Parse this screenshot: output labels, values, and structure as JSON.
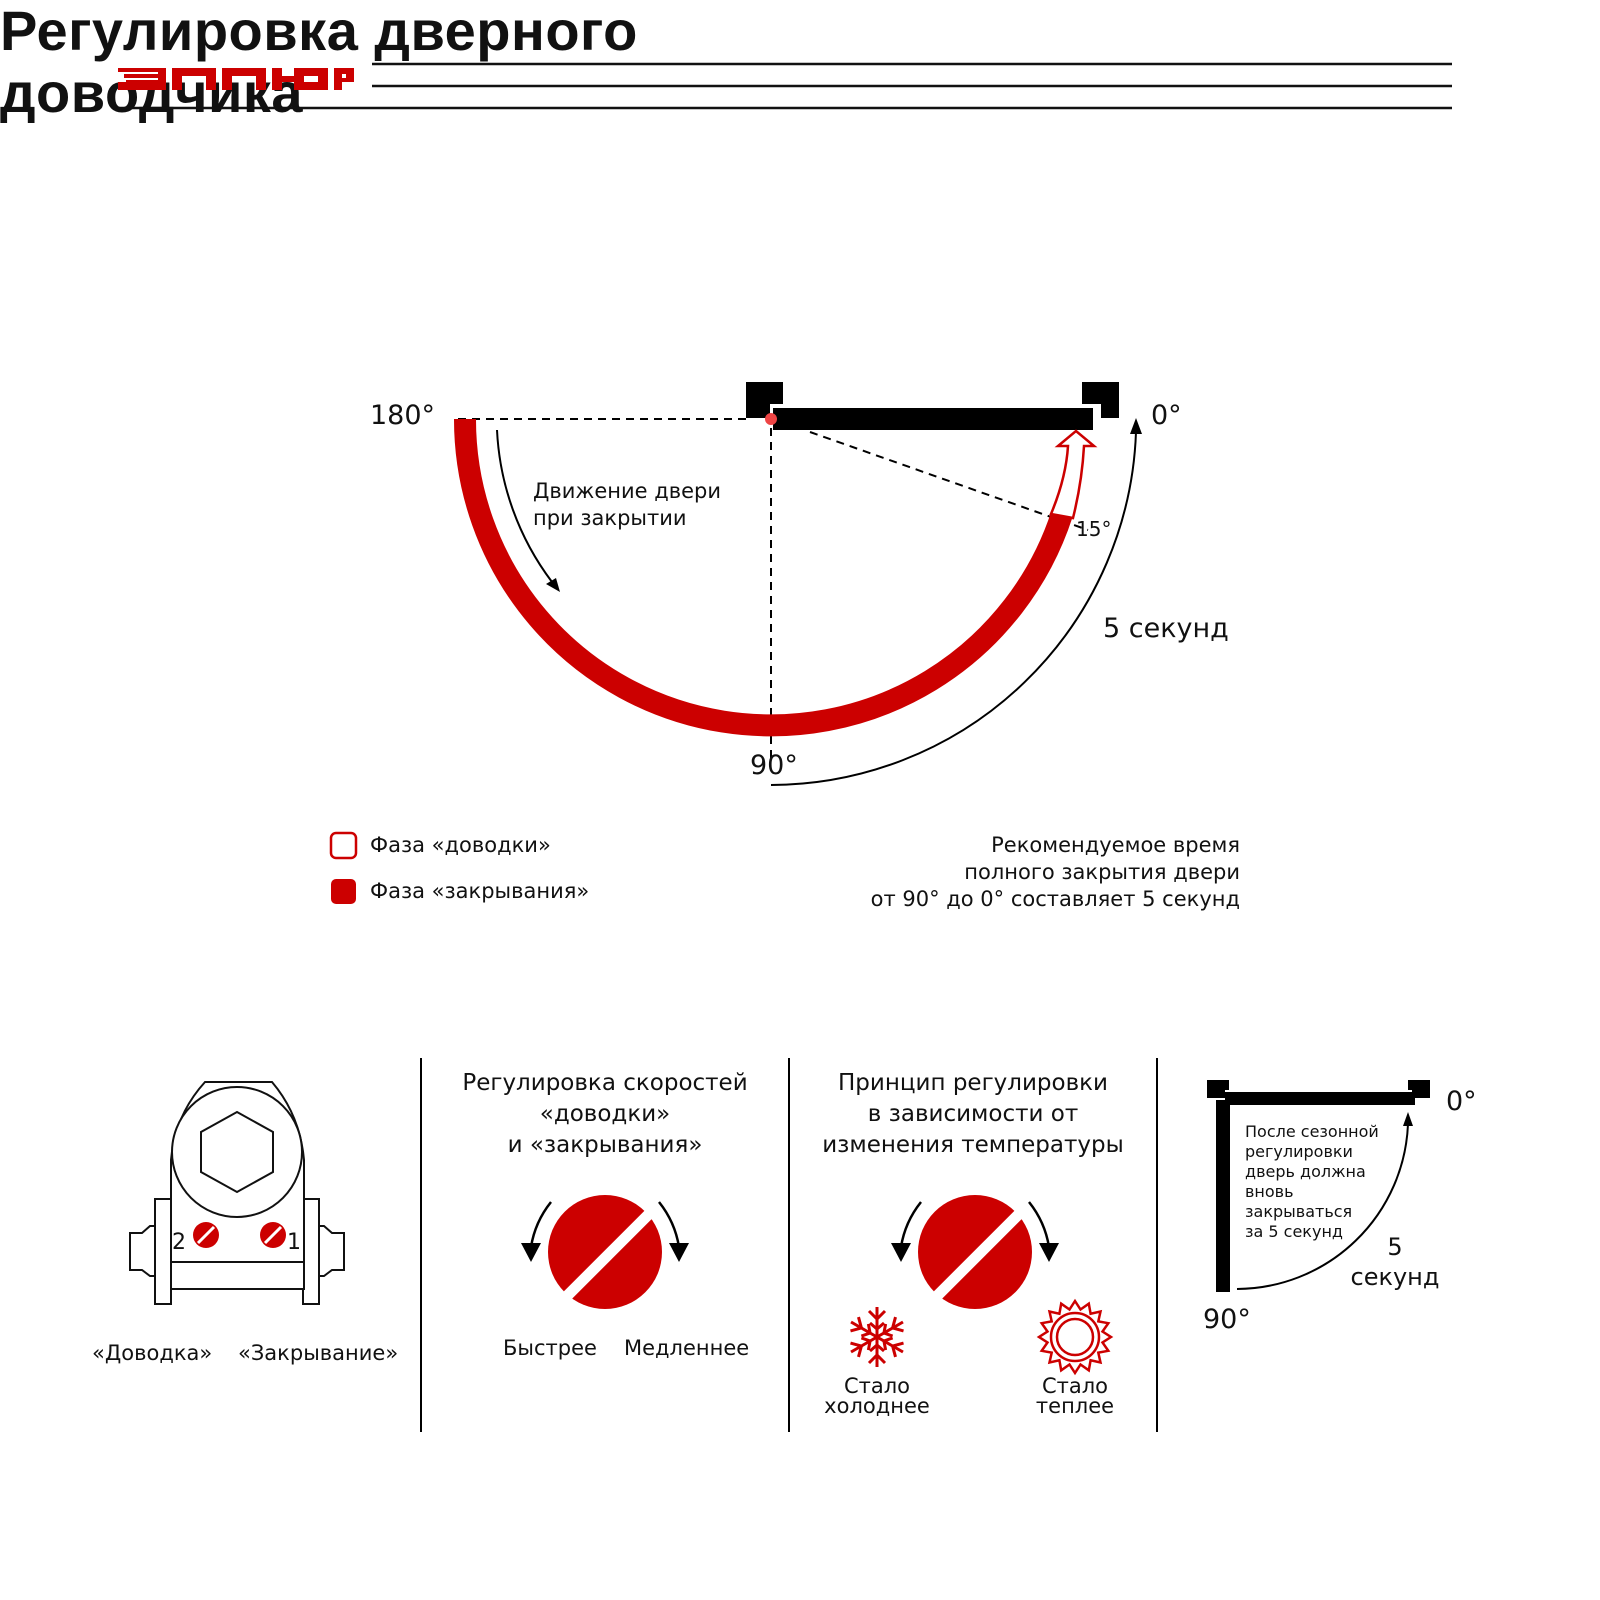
{
  "brand": {
    "logo_text": "АЛЛЮР",
    "color": "#cc0000"
  },
  "title": "Регулировка дверного\nдоводчика",
  "diagram": {
    "angle_180": "180°",
    "angle_0": "0°",
    "angle_90": "90°",
    "angle_15": "15°",
    "motion_label": "Движение двери\nпри закрытии",
    "time_label": "5 секунд"
  },
  "legend": [
    {
      "label": "Фаза «доводки»",
      "style": "outline"
    },
    {
      "label": "Фаза «закрывания»",
      "style": "filled"
    }
  ],
  "recommendation": "Рекомендуемое время\nполного закрытия двери\nот 90° до 0° составляет 5 секунд",
  "panels": {
    "closer": {
      "screw_2": "2",
      "screw_1": "1",
      "label_left": "«Доводка»",
      "label_right": "«Закрывание»"
    },
    "speed": {
      "title": "Регулировка скоростей\n«доводки»\nи «закрывания»",
      "left": "Быстрее",
      "right": "Медленнее"
    },
    "temperature": {
      "title": "Принцип регулировки\nв зависимости от\nизменения температуры",
      "left": "Стало\nхолоднее",
      "right": "Стало\nтеплее",
      "left_icon": "snowflake-icon",
      "right_icon": "sun-icon"
    },
    "seasonal": {
      "note": "После сезонной\nрегулировки\nдверь должна\nвновь\nзакрываться\nза 5 секунд",
      "angle_0": "0°",
      "angle_90": "90°",
      "time": "5\nсекунд"
    }
  },
  "colors": {
    "accent": "#cc0000",
    "ink": "#000000"
  }
}
